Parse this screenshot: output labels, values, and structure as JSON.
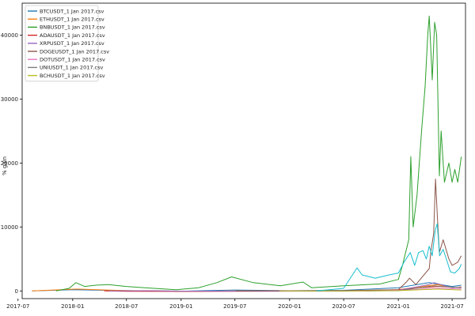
{
  "chart_data": {
    "type": "line",
    "title": "",
    "xlabel": "",
    "ylabel": "% gain",
    "xlim": [
      "2017-07-15",
      "2021-08-15"
    ],
    "ylim": [
      -1200,
      45000
    ],
    "grid": false,
    "legend_position": "top-left",
    "x_ticks": [
      "2017-07",
      "2018-01",
      "2018-07",
      "2019-01",
      "2019-07",
      "2020-01",
      "2020-07",
      "2021-01",
      "2021-07"
    ],
    "y_ticks": [
      0,
      10000,
      20000,
      30000,
      40000
    ],
    "series": [
      {
        "name": "BTCUSDT_1 Jan 2017.csv",
        "color": "#1f77b4",
        "points": [
          [
            "2017-08-17",
            0
          ],
          [
            "2018-01-01",
            200
          ],
          [
            "2018-07-01",
            50
          ],
          [
            "2019-01-01",
            -40
          ],
          [
            "2019-07-01",
            150
          ],
          [
            "2020-01-01",
            40
          ],
          [
            "2020-07-01",
            100
          ],
          [
            "2021-01-01",
            500
          ],
          [
            "2021-04-14",
            1300
          ],
          [
            "2021-07-01",
            700
          ],
          [
            "2021-08-01",
            900
          ]
        ]
      },
      {
        "name": "ETHUSDT_1 Jan 2017.csv",
        "color": "#ff7f0e",
        "points": [
          [
            "2017-08-17",
            0
          ],
          [
            "2018-01-15",
            300
          ],
          [
            "2018-07-01",
            50
          ],
          [
            "2019-01-01",
            -60
          ],
          [
            "2019-07-01",
            0
          ],
          [
            "2020-07-01",
            0
          ],
          [
            "2021-01-01",
            200
          ],
          [
            "2021-05-12",
            1000
          ],
          [
            "2021-07-01",
            500
          ],
          [
            "2021-08-01",
            650
          ]
        ]
      },
      {
        "name": "BNBUSDT_1 Jan 2017.csv",
        "color": "#2ca02c",
        "points": [
          [
            "2017-11-06",
            0
          ],
          [
            "2017-12-20",
            400
          ],
          [
            "2018-01-12",
            1300
          ],
          [
            "2018-02-10",
            700
          ],
          [
            "2018-03-20",
            900
          ],
          [
            "2018-05-01",
            1000
          ],
          [
            "2018-07-01",
            700
          ],
          [
            "2018-09-01",
            500
          ],
          [
            "2018-12-15",
            200
          ],
          [
            "2019-03-01",
            500
          ],
          [
            "2019-05-01",
            1300
          ],
          [
            "2019-06-20",
            2200
          ],
          [
            "2019-09-01",
            1300
          ],
          [
            "2019-12-01",
            800
          ],
          [
            "2020-02-15",
            1400
          ],
          [
            "2020-03-15",
            500
          ],
          [
            "2020-07-01",
            800
          ],
          [
            "2020-11-01",
            1100
          ],
          [
            "2021-01-01",
            1800
          ],
          [
            "2021-01-15",
            4000
          ],
          [
            "2021-02-05",
            8000
          ],
          [
            "2021-02-12",
            21000
          ],
          [
            "2021-02-20",
            10000
          ],
          [
            "2021-03-05",
            15000
          ],
          [
            "2021-03-20",
            25000
          ],
          [
            "2021-04-01",
            32000
          ],
          [
            "2021-04-10",
            40000
          ],
          [
            "2021-04-15",
            43000
          ],
          [
            "2021-04-25",
            33000
          ],
          [
            "2021-05-03",
            42000
          ],
          [
            "2021-05-10",
            40000
          ],
          [
            "2021-05-19",
            18000
          ],
          [
            "2021-05-25",
            25000
          ],
          [
            "2021-06-05",
            17000
          ],
          [
            "2021-06-20",
            20000
          ],
          [
            "2021-07-01",
            17000
          ],
          [
            "2021-07-10",
            19000
          ],
          [
            "2021-07-20",
            17000
          ],
          [
            "2021-08-01",
            21000
          ]
        ]
      },
      {
        "name": "ADAUSDT_1 Jan 2017.csv",
        "color": "#d62728",
        "points": [
          [
            "2018-04-17",
            0
          ],
          [
            "2018-07-01",
            -50
          ],
          [
            "2019-01-01",
            -80
          ],
          [
            "2020-07-01",
            0
          ],
          [
            "2021-01-01",
            200
          ],
          [
            "2021-05-15",
            700
          ],
          [
            "2021-08-01",
            500
          ]
        ]
      },
      {
        "name": "XRPUSDT_1 Jan 2017.csv",
        "color": "#9467bd",
        "points": [
          [
            "2018-05-04",
            0
          ],
          [
            "2018-09-20",
            40
          ],
          [
            "2019-01-01",
            -30
          ],
          [
            "2020-07-01",
            -40
          ],
          [
            "2021-01-01",
            100
          ],
          [
            "2021-04-14",
            1000
          ],
          [
            "2021-05-01",
            1300
          ],
          [
            "2021-07-01",
            500
          ],
          [
            "2021-08-01",
            600
          ]
        ]
      },
      {
        "name": "DOGEUSDT_1 Jan 2017.csv",
        "color": "#8c564b",
        "points": [
          [
            "2019-07-05",
            0
          ],
          [
            "2020-07-01",
            50
          ],
          [
            "2021-01-01",
            200
          ],
          [
            "2021-01-28",
            1400
          ],
          [
            "2021-02-08",
            2000
          ],
          [
            "2021-03-01",
            1000
          ],
          [
            "2021-04-15",
            3500
          ],
          [
            "2021-04-20",
            6000
          ],
          [
            "2021-04-30",
            9000
          ],
          [
            "2021-05-06",
            17500
          ],
          [
            "2021-05-12",
            12000
          ],
          [
            "2021-05-19",
            6000
          ],
          [
            "2021-06-01",
            8000
          ],
          [
            "2021-06-20",
            5000
          ],
          [
            "2021-07-01",
            4000
          ],
          [
            "2021-07-20",
            4500
          ],
          [
            "2021-08-01",
            5500
          ]
        ]
      },
      {
        "name": "DOTUSDT_1 Jan 2017.csv",
        "color": "#e377c2",
        "points": [
          [
            "2020-08-18",
            0
          ],
          [
            "2020-09-15",
            -20
          ],
          [
            "2021-01-01",
            100
          ],
          [
            "2021-05-15",
            400
          ],
          [
            "2021-08-01",
            300
          ]
        ]
      },
      {
        "name": "UNIUSDT_1 Jan 2017.csv",
        "color": "#7f7f7f",
        "points": [
          [
            "2020-09-17",
            0
          ],
          [
            "2021-01-01",
            30
          ],
          [
            "2021-05-01",
            800
          ],
          [
            "2021-08-01",
            500
          ]
        ]
      },
      {
        "name": "BCHUSDT_1 Jan 2017.csv",
        "color": "#bcbd22",
        "points": [
          [
            "2019-11-28",
            0
          ],
          [
            "2020-07-01",
            -10
          ],
          [
            "2021-01-01",
            50
          ],
          [
            "2021-05-12",
            300
          ],
          [
            "2021-08-01",
            150
          ]
        ]
      },
      {
        "name": "",
        "color": "#17becf",
        "points": [
          [
            "2020-04-01",
            0
          ],
          [
            "2020-07-01",
            400
          ],
          [
            "2020-08-15",
            3600
          ],
          [
            "2020-09-01",
            2500
          ],
          [
            "2020-10-15",
            2000
          ],
          [
            "2020-12-01",
            2500
          ],
          [
            "2021-01-01",
            2800
          ],
          [
            "2021-01-20",
            4500
          ],
          [
            "2021-02-10",
            6000
          ],
          [
            "2021-02-25",
            4000
          ],
          [
            "2021-03-10",
            6000
          ],
          [
            "2021-03-25",
            6300
          ],
          [
            "2021-04-05",
            5000
          ],
          [
            "2021-04-15",
            7000
          ],
          [
            "2021-04-25",
            5500
          ],
          [
            "2021-05-05",
            9500
          ],
          [
            "2021-05-12",
            10500
          ],
          [
            "2021-05-20",
            5500
          ],
          [
            "2021-06-01",
            6500
          ],
          [
            "2021-06-15",
            4500
          ],
          [
            "2021-06-25",
            3000
          ],
          [
            "2021-07-10",
            2800
          ],
          [
            "2021-07-25",
            3500
          ],
          [
            "2021-08-01",
            4200
          ]
        ]
      }
    ]
  }
}
